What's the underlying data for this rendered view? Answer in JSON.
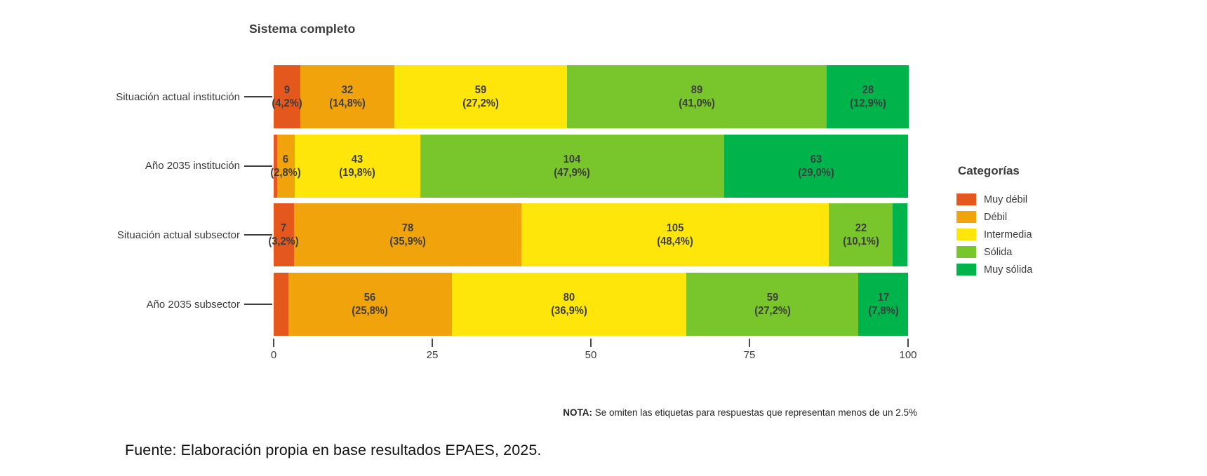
{
  "title": "Sistema completo",
  "legend": {
    "title": "Categorías",
    "items": [
      {
        "label": "Muy débil",
        "color": "#E4581D"
      },
      {
        "label": "Débil",
        "color": "#F0A30A"
      },
      {
        "label": "Intermedia",
        "color": "#FFE60A"
      },
      {
        "label": "Sólida",
        "color": "#79C52C"
      },
      {
        "label": "Muy sólida",
        "color": "#00B44C"
      }
    ]
  },
  "x_axis": {
    "ticks": [
      "0",
      "25",
      "50",
      "75",
      "100"
    ],
    "min": 0,
    "max": 100
  },
  "note": {
    "prefix": "NOTA:",
    "text": " Se omiten las etiquetas para respuestas que representan menos de un 2.5%"
  },
  "source": "Fuente: Elaboración propia en base resultados EPAES, 2025.",
  "chart_rows": [
    {
      "label": "Situación actual institución",
      "segments": [
        {
          "category": "Muy débil",
          "pct": 4.2,
          "value_label": "9",
          "pct_label": "(4,2%)"
        },
        {
          "category": "Débil",
          "pct": 14.8,
          "value_label": "32",
          "pct_label": "(14,8%)"
        },
        {
          "category": "Intermedia",
          "pct": 27.2,
          "value_label": "59",
          "pct_label": "(27,2%)"
        },
        {
          "category": "Sólida",
          "pct": 41.0,
          "value_label": "89",
          "pct_label": "(41,0%)"
        },
        {
          "category": "Muy sólida",
          "pct": 12.9,
          "value_label": "28",
          "pct_label": "(12,9%)"
        }
      ]
    },
    {
      "label": "Año 2035 institución",
      "segments": [
        {
          "category": "Muy débil",
          "pct": 0.5,
          "value_label": "",
          "pct_label": ""
        },
        {
          "category": "Débil",
          "pct": 2.8,
          "value_label": "6",
          "pct_label": "(2,8%)"
        },
        {
          "category": "Intermedia",
          "pct": 19.8,
          "value_label": "43",
          "pct_label": "(19,8%)"
        },
        {
          "category": "Sólida",
          "pct": 47.9,
          "value_label": "104",
          "pct_label": "(47,9%)"
        },
        {
          "category": "Muy sólida",
          "pct": 29.0,
          "value_label": "63",
          "pct_label": "(29,0%)"
        }
      ]
    },
    {
      "label": "Situación actual subsector",
      "segments": [
        {
          "category": "Muy débil",
          "pct": 3.2,
          "value_label": "7",
          "pct_label": "(3,2%)"
        },
        {
          "category": "Débil",
          "pct": 35.9,
          "value_label": "78",
          "pct_label": "(35,9%)"
        },
        {
          "category": "Intermedia",
          "pct": 48.4,
          "value_label": "105",
          "pct_label": "(48,4%)"
        },
        {
          "category": "Sólida",
          "pct": 10.1,
          "value_label": "22",
          "pct_label": "(10,1%)"
        },
        {
          "category": "Muy sólida",
          "pct": 2.3,
          "value_label": "",
          "pct_label": ""
        }
      ]
    },
    {
      "label": "Año 2035 subsector",
      "segments": [
        {
          "category": "Muy débil",
          "pct": 2.3,
          "value_label": "",
          "pct_label": ""
        },
        {
          "category": "Débil",
          "pct": 25.8,
          "value_label": "56",
          "pct_label": "(25,8%)"
        },
        {
          "category": "Intermedia",
          "pct": 36.9,
          "value_label": "80",
          "pct_label": "(36,9%)"
        },
        {
          "category": "Sólida",
          "pct": 27.2,
          "value_label": "59",
          "pct_label": "(27,2%)"
        },
        {
          "category": "Muy sólida",
          "pct": 7.8,
          "value_label": "17",
          "pct_label": "(7,8%)"
        }
      ]
    }
  ],
  "chart_data": {
    "type": "bar",
    "orientation": "horizontal",
    "stacked": true,
    "title": "Sistema completo",
    "categories": [
      "Situación actual institución",
      "Año 2035 institución",
      "Situación actual subsector",
      "Año 2035 subsector"
    ],
    "series": [
      {
        "name": "Muy débil",
        "color": "#E4581D",
        "values": [
          9,
          1,
          7,
          5
        ],
        "percents": [
          4.2,
          0.5,
          3.2,
          2.3
        ]
      },
      {
        "name": "Débil",
        "color": "#F0A30A",
        "values": [
          32,
          6,
          78,
          56
        ],
        "percents": [
          14.8,
          2.8,
          35.9,
          25.8
        ]
      },
      {
        "name": "Intermedia",
        "color": "#FFE60A",
        "values": [
          59,
          43,
          105,
          80
        ],
        "percents": [
          27.2,
          19.8,
          48.4,
          36.9
        ]
      },
      {
        "name": "Sólida",
        "color": "#79C52C",
        "values": [
          89,
          104,
          22,
          59
        ],
        "percents": [
          41.0,
          47.9,
          10.1,
          27.2
        ]
      },
      {
        "name": "Muy sólida",
        "color": "#00B44C",
        "values": [
          28,
          63,
          5,
          17
        ],
        "percents": [
          12.9,
          29.0,
          2.3,
          7.8
        ]
      }
    ],
    "xlabel": "",
    "ylabel": "",
    "xlim": [
      0,
      100
    ],
    "x_ticks": [
      0,
      25,
      50,
      75,
      100
    ],
    "legend_position": "right",
    "legend_title": "Categorías",
    "note": "Se omiten las etiquetas para respuestas que representan menos de un 2.5%; unlabeled sliver counts (1, 5, 5) inferred from widths and row totals of 217"
  }
}
